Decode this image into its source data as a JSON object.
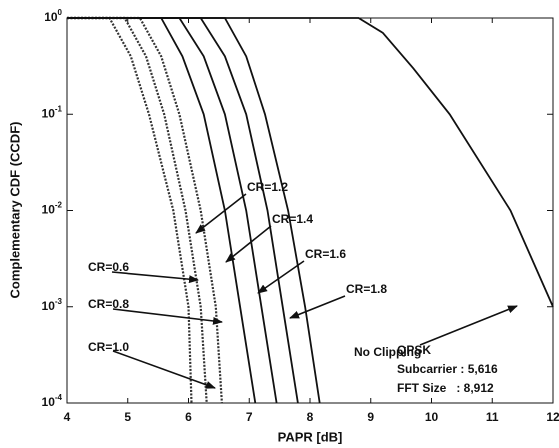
{
  "chart_data": {
    "type": "line",
    "xlabel": "PAPR [dB]",
    "ylabel": "Complementary CDF (CCDF)",
    "xlim": [
      4,
      12
    ],
    "ylim": [
      0.0001,
      1
    ],
    "log_y": true,
    "xticks": [
      4,
      5,
      6,
      7,
      8,
      9,
      10,
      11,
      12
    ],
    "yticks": [
      {
        "value": 0.0001,
        "label": "10^-4"
      },
      {
        "value": 0.001,
        "label": "10^-3"
      },
      {
        "value": 0.01,
        "label": "10^-2"
      },
      {
        "value": 0.1,
        "label": "10^-1"
      },
      {
        "value": 1,
        "label": "10^0"
      }
    ],
    "series": [
      {
        "name": "CR=0.6",
        "color": "#333333",
        "style": "dotted",
        "x": [
          4,
          4.7,
          5.05,
          5.35,
          5.75,
          6.0,
          6.05
        ],
        "values": [
          1,
          1,
          0.4,
          0.1,
          0.01,
          0.001,
          0.0001
        ]
      },
      {
        "name": "CR=0.8",
        "color": "#333333",
        "style": "dotted",
        "x": [
          4,
          4.95,
          5.3,
          5.6,
          5.95,
          6.2,
          6.3
        ],
        "values": [
          1,
          1,
          0.4,
          0.1,
          0.01,
          0.001,
          0.0001
        ]
      },
      {
        "name": "CR=1.0",
        "color": "#333333",
        "style": "dotted",
        "x": [
          4,
          5.2,
          5.55,
          5.85,
          6.2,
          6.45,
          6.55
        ],
        "values": [
          1,
          1,
          0.4,
          0.1,
          0.01,
          0.001,
          0.0001
        ]
      },
      {
        "name": "CR=1.2",
        "color": "#111111",
        "style": "solid",
        "x": [
          4,
          5.55,
          5.9,
          6.25,
          6.6,
          6.85,
          7.1
        ],
        "values": [
          1,
          1,
          0.4,
          0.1,
          0.01,
          0.001,
          0.0001
        ]
      },
      {
        "name": "CR=1.4",
        "color": "#111111",
        "style": "solid",
        "x": [
          4,
          5.85,
          6.25,
          6.6,
          6.95,
          7.2,
          7.45
        ],
        "values": [
          1,
          1,
          0.4,
          0.1,
          0.01,
          0.001,
          0.0001
        ]
      },
      {
        "name": "CR=1.6",
        "color": "#111111",
        "style": "solid",
        "x": [
          4,
          6.2,
          6.6,
          6.95,
          7.3,
          7.55,
          7.8
        ],
        "values": [
          1,
          1,
          0.4,
          0.1,
          0.01,
          0.001,
          0.0001
        ]
      },
      {
        "name": "CR=1.8",
        "color": "#111111",
        "style": "solid",
        "x": [
          4,
          6.6,
          6.95,
          7.26,
          7.64,
          7.92,
          8.16
        ],
        "values": [
          1,
          1,
          0.4,
          0.1,
          0.01,
          0.001,
          0.0001
        ]
      },
      {
        "name": "No Clipping",
        "color": "#111111",
        "style": "solid",
        "x": [
          4,
          8.8,
          9.2,
          9.7,
          10.3,
          11.3,
          12
        ],
        "values": [
          1,
          1,
          0.7,
          0.3,
          0.1,
          0.01,
          0.001
        ]
      }
    ],
    "info": [
      "QPSK",
      "Subcarrier : 5,616",
      "FFT Size   : 8,912"
    ]
  }
}
